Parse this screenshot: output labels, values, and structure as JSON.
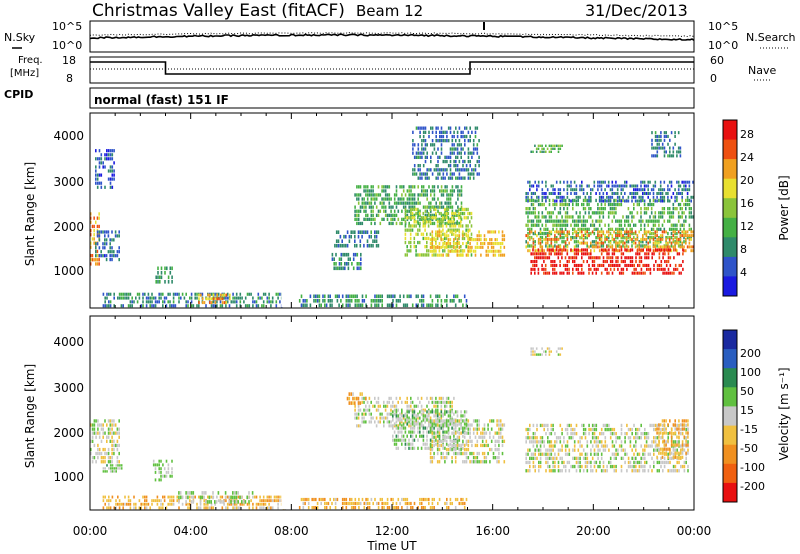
{
  "header": {
    "station": "Christmas Valley East (fitACF)",
    "beam": "Beam 12",
    "date": "31/Dec/2013"
  },
  "noise_panel": {
    "left_label": "N.Sky",
    "right_label": "N.Search",
    "ticks": [
      "10^5",
      "10^0"
    ]
  },
  "freq_panel": {
    "left_label_1": "Freq.",
    "left_label_2": "[MHz]",
    "left_ticks": [
      "18",
      "8"
    ],
    "right_label": "Nave",
    "right_ticks": [
      "60",
      "0"
    ]
  },
  "cpid": {
    "label": "CPID",
    "mode": "normal (fast) 151 IF"
  },
  "x_axis": {
    "label": "Time UT",
    "ticks": [
      "00:00",
      "04:00",
      "08:00",
      "12:00",
      "16:00",
      "20:00",
      "00:00"
    ]
  },
  "power_panel": {
    "ylabel": "Slant Range [km]",
    "yticks": [
      "1000",
      "2000",
      "3000",
      "4000"
    ],
    "colorbar_label": "Power [dB]",
    "colorbar_ticks": [
      "4",
      "8",
      "12",
      "16",
      "20",
      "24",
      "28"
    ],
    "colors": [
      "#1a1ae0",
      "#2f54c9",
      "#2f8a6a",
      "#44b044",
      "#8ac43a",
      "#e8e030",
      "#f0a020",
      "#ee5010",
      "#e81010"
    ]
  },
  "velocity_panel": {
    "ylabel": "Slant Range [km]",
    "yticks": [
      "1000",
      "2000",
      "3000",
      "4000"
    ],
    "colorbar_label": "Velocity [m s⁻¹]",
    "colorbar_ticks": [
      "200",
      "100",
      "50",
      "15",
      "-15",
      "-50",
      "-100",
      "-200"
    ],
    "colors": [
      "#1a2aa0",
      "#2a5ec0",
      "#2a8a50",
      "#60c040",
      "#c8c8c8",
      "#f0c040",
      "#f09020",
      "#f06010",
      "#e81010"
    ]
  },
  "chart_data": [
    {
      "type": "heatmap",
      "title": "Power [dB]",
      "xlabel": "Time UT",
      "ylabel": "Slant Range [km]",
      "x_range_hours": [
        0,
        24
      ],
      "y_range_km": [
        180,
        4500
      ],
      "z_range": [
        0,
        30
      ],
      "regions": [
        {
          "t0": 0.0,
          "t1": 0.4,
          "r0": 1100,
          "r1": 2300,
          "level": 22
        },
        {
          "t0": 0.2,
          "t1": 1.2,
          "r0": 1200,
          "r1": 1900,
          "level": 6
        },
        {
          "t0": 0.2,
          "t1": 1.0,
          "r0": 2800,
          "r1": 3700,
          "level": 5
        },
        {
          "t0": 2.6,
          "t1": 3.3,
          "r0": 700,
          "r1": 1100,
          "level": 10
        },
        {
          "t0": 0.5,
          "t1": 7.8,
          "r0": 180,
          "r1": 520,
          "level": 8
        },
        {
          "t0": 4.3,
          "t1": 5.6,
          "r0": 250,
          "r1": 500,
          "level": 22
        },
        {
          "t0": 8.3,
          "t1": 15.0,
          "r0": 180,
          "r1": 480,
          "level": 9
        },
        {
          "t0": 9.7,
          "t1": 11.5,
          "r0": 1500,
          "r1": 1900,
          "level": 7
        },
        {
          "t0": 9.6,
          "t1": 10.8,
          "r0": 1000,
          "r1": 1400,
          "level": 8
        },
        {
          "t0": 10.5,
          "t1": 14.8,
          "r0": 2000,
          "r1": 2900,
          "level": 11
        },
        {
          "t0": 12.5,
          "t1": 15.2,
          "r0": 1300,
          "r1": 2400,
          "level": 16
        },
        {
          "t0": 13.5,
          "t1": 16.5,
          "r0": 1300,
          "r1": 1900,
          "level": 20
        },
        {
          "t0": 12.8,
          "t1": 15.5,
          "r0": 3000,
          "r1": 4200,
          "level": 7
        },
        {
          "t0": 17.3,
          "t1": 24.0,
          "r0": 1500,
          "r1": 2600,
          "level": 12
        },
        {
          "t0": 17.3,
          "t1": 24.0,
          "r0": 1400,
          "r1": 1900,
          "level": 22
        },
        {
          "t0": 17.5,
          "t1": 23.6,
          "r0": 900,
          "r1": 1500,
          "level": 28
        },
        {
          "t0": 17.3,
          "t1": 24.0,
          "r0": 2500,
          "r1": 3000,
          "level": 6
        },
        {
          "t0": 17.5,
          "t1": 18.8,
          "r0": 3600,
          "r1": 3800,
          "level": 12
        },
        {
          "t0": 22.3,
          "t1": 23.5,
          "r0": 3500,
          "r1": 4100,
          "level": 7
        }
      ]
    },
    {
      "type": "heatmap",
      "title": "Velocity [m s⁻¹]",
      "xlabel": "Time UT",
      "ylabel": "Slant Range [km]",
      "x_range_hours": [
        0,
        24
      ],
      "y_range_km": [
        180,
        4500
      ],
      "z_range": [
        -250,
        250
      ],
      "regions": [
        {
          "t0": 0.0,
          "t1": 1.2,
          "r0": 1200,
          "r1": 2200,
          "level": 0
        },
        {
          "t0": 0.5,
          "t1": 1.3,
          "r0": 1000,
          "r1": 1200,
          "level": 40
        },
        {
          "t0": 2.5,
          "t1": 3.3,
          "r0": 800,
          "r1": 1300,
          "level": 40
        },
        {
          "t0": 0.5,
          "t1": 7.8,
          "r0": 180,
          "r1": 500,
          "level": -60
        },
        {
          "t0": 3.5,
          "t1": 6.5,
          "r0": 300,
          "r1": 600,
          "level": 30
        },
        {
          "t0": 8.3,
          "t1": 15.0,
          "r0": 180,
          "r1": 450,
          "level": -70
        },
        {
          "t0": 10.5,
          "t1": 14.5,
          "r0": 2000,
          "r1": 2700,
          "level": 0
        },
        {
          "t0": 12.0,
          "t1": 15.0,
          "r0": 1500,
          "r1": 2400,
          "level": 40
        },
        {
          "t0": 13.5,
          "t1": 16.5,
          "r0": 1200,
          "r1": 2200,
          "level": 0
        },
        {
          "t0": 17.3,
          "t1": 23.8,
          "r0": 1000,
          "r1": 2100,
          "level": 0
        },
        {
          "t0": 17.5,
          "t1": 18.8,
          "r0": 3600,
          "r1": 3800,
          "level": 0
        },
        {
          "t0": 22.5,
          "t1": 23.8,
          "r0": 1300,
          "r1": 2200,
          "level": -70
        },
        {
          "t0": 10.2,
          "t1": 11.0,
          "r0": 2500,
          "r1": 2800,
          "level": -80
        }
      ]
    }
  ]
}
